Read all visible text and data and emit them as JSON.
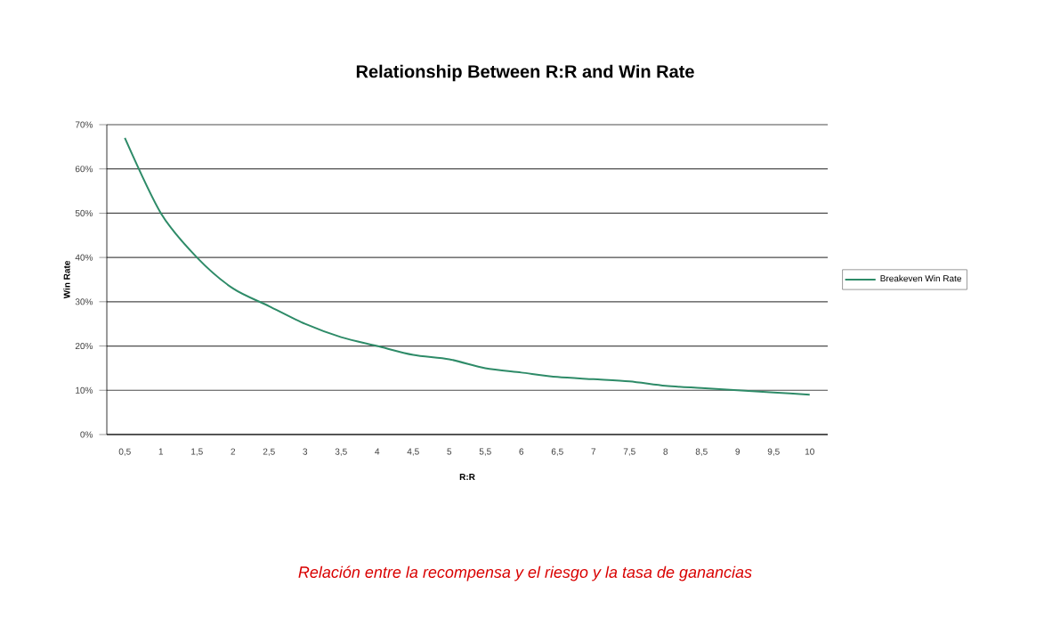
{
  "chart_data": {
    "type": "line",
    "title": "Relationship Between R:R and Win Rate",
    "xlabel": "R:R",
    "ylabel": "Win Rate",
    "categories": [
      "0,5",
      "1",
      "1,5",
      "2",
      "2,5",
      "3",
      "3,5",
      "4",
      "4,5",
      "5",
      "5,5",
      "6",
      "6,5",
      "7",
      "7,5",
      "8",
      "8,5",
      "9",
      "9,5",
      "10"
    ],
    "series": [
      {
        "name": "Breakeven Win Rate",
        "color": "#2e8b68",
        "values": [
          67,
          50,
          40,
          33,
          29,
          25,
          22,
          20,
          18,
          17,
          15,
          14,
          13,
          12.5,
          12,
          11,
          10.5,
          10,
          9.5,
          9
        ]
      }
    ],
    "ylim": [
      0,
      70
    ],
    "yticks": [
      {
        "value": 0,
        "label": "0%"
      },
      {
        "value": 10,
        "label": "10%"
      },
      {
        "value": 20,
        "label": "20%"
      },
      {
        "value": 30,
        "label": "30%"
      },
      {
        "value": 40,
        "label": "40%"
      },
      {
        "value": 50,
        "label": "50%"
      },
      {
        "value": 60,
        "label": "60%"
      },
      {
        "value": 70,
        "label": "70%"
      }
    ],
    "grid": "y",
    "legend": "right",
    "marker": "none",
    "line_style": "solid",
    "annotations": [
      "Relación entre la recompensa y el riesgo y la tasa de ganancias"
    ]
  }
}
